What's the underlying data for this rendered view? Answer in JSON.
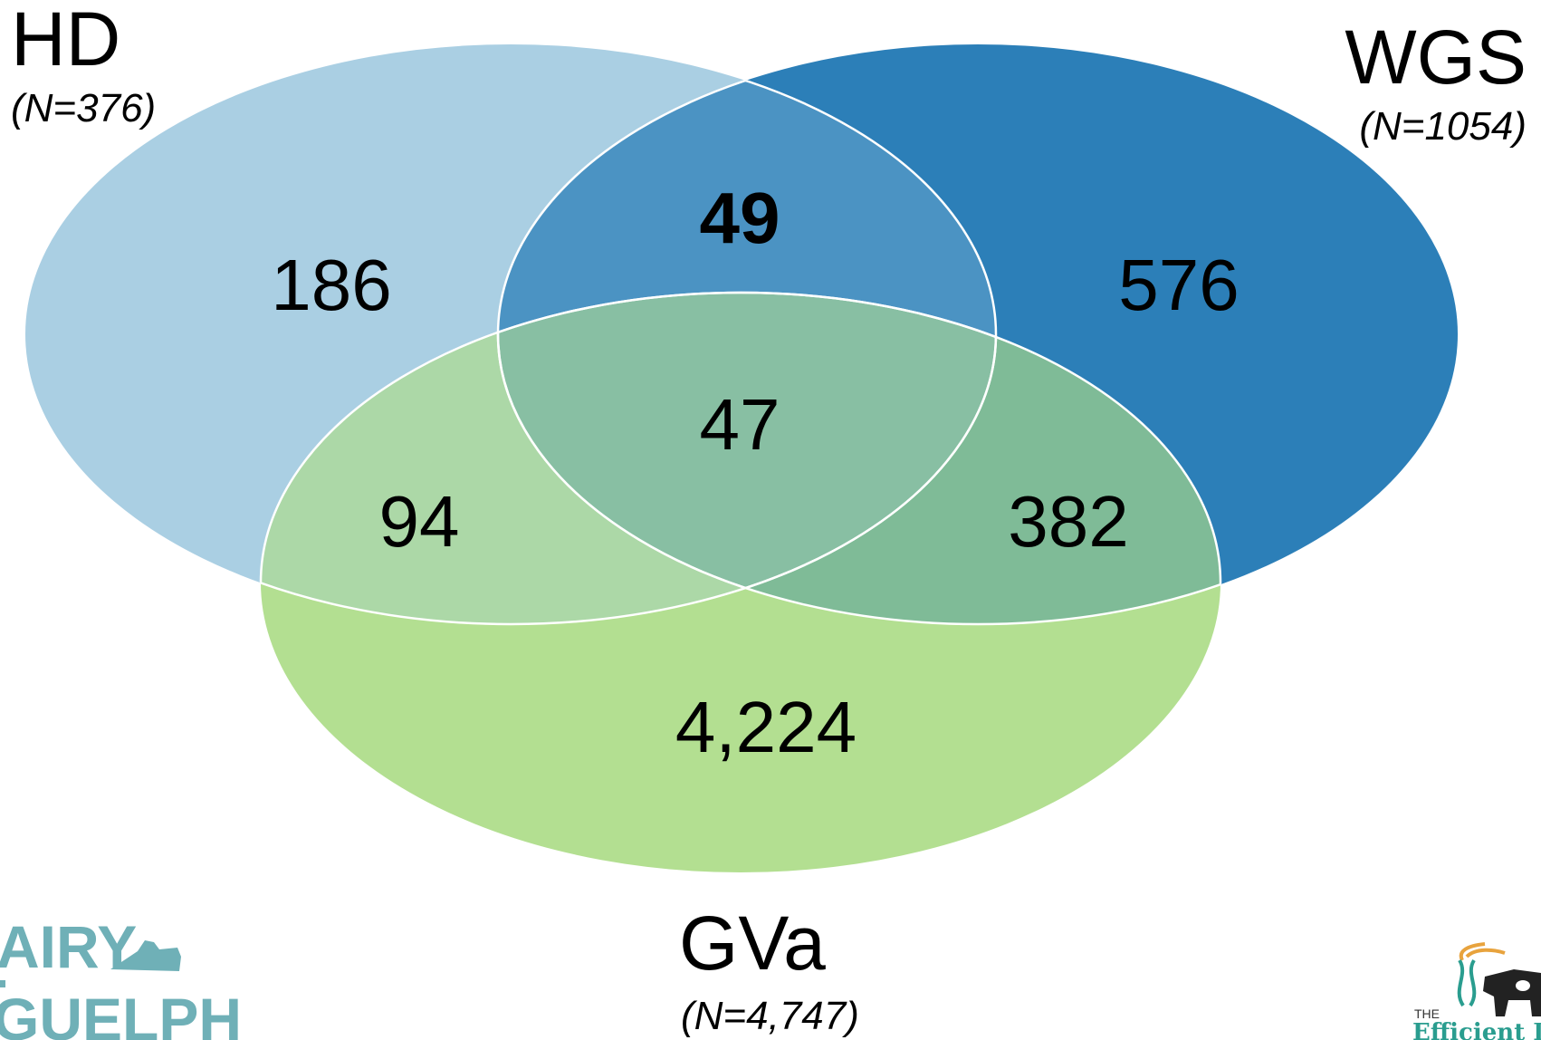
{
  "colors": {
    "hd": "#aacfe3",
    "wgs": "#2c7fb8",
    "gva": "#b3df91",
    "hd_wgs": "#4b93c3",
    "hd_gva": "#acd8a7",
    "wgs_gva": "#7fbb97",
    "all": "#88bfa3",
    "outline": "#ffffff",
    "logo_left": "#6fb0b7",
    "logo_right_text": "#2a9d8f",
    "logo_right_wheat": "#e8a33d"
  },
  "sets": {
    "hd": {
      "name": "HD",
      "count": "(N=376)"
    },
    "wgs": {
      "name": "WGS",
      "count": "(N=1054)"
    },
    "gva": {
      "name": "GVa",
      "count": "(N=4,747)"
    }
  },
  "regions": {
    "hd_only": "186",
    "wgs_only": "576",
    "gva_only": "4,224",
    "hd_wgs": "49",
    "hd_gva": "94",
    "wgs_gva": "382",
    "all": "47"
  },
  "logos": {
    "left": {
      "name": "dairy-at-guelph-logo",
      "line1": "AIRY",
      "line2": "GUELPH"
    },
    "right": {
      "name": "efficient-dairy-genome-logo",
      "small": "THE",
      "main": "Efficient D"
    }
  }
}
